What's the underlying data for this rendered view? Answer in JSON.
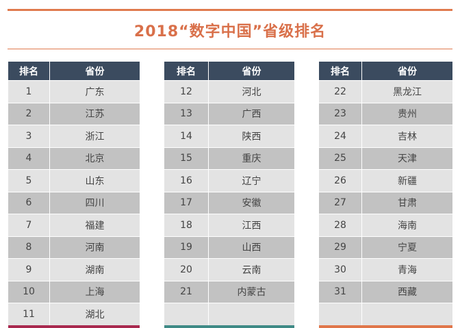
{
  "title": "2018“数字中国”省级排名",
  "colors": {
    "accent": "#e07a4e",
    "header_bg": "#3b4b5f",
    "row_light": "#e3e3e3",
    "row_dark": "#c2c2c2",
    "footer_1": "#a8294f",
    "footer_2": "#3f8a86",
    "footer_3": "#e0764a"
  },
  "tables": [
    {
      "headers": {
        "rank": "排名",
        "province": "省份"
      },
      "rows": [
        {
          "rank": "1",
          "province": "广东"
        },
        {
          "rank": "2",
          "province": "江苏"
        },
        {
          "rank": "3",
          "province": "浙江"
        },
        {
          "rank": "4",
          "province": "北京"
        },
        {
          "rank": "5",
          "province": "山东"
        },
        {
          "rank": "6",
          "province": "四川"
        },
        {
          "rank": "7",
          "province": "福建"
        },
        {
          "rank": "8",
          "province": "河南"
        },
        {
          "rank": "9",
          "province": "湖南"
        },
        {
          "rank": "10",
          "province": "上海"
        },
        {
          "rank": "11",
          "province": "湖北"
        }
      ]
    },
    {
      "headers": {
        "rank": "排名",
        "province": "省份"
      },
      "rows": [
        {
          "rank": "12",
          "province": "河北"
        },
        {
          "rank": "13",
          "province": "广西"
        },
        {
          "rank": "14",
          "province": "陕西"
        },
        {
          "rank": "15",
          "province": "重庆"
        },
        {
          "rank": "16",
          "province": "辽宁"
        },
        {
          "rank": "17",
          "province": "安徽"
        },
        {
          "rank": "18",
          "province": "江西"
        },
        {
          "rank": "19",
          "province": "山西"
        },
        {
          "rank": "20",
          "province": "云南"
        },
        {
          "rank": "21",
          "province": "内蒙古"
        },
        {
          "rank": "",
          "province": ""
        }
      ]
    },
    {
      "headers": {
        "rank": "排名",
        "province": "省份"
      },
      "rows": [
        {
          "rank": "22",
          "province": "黑龙江"
        },
        {
          "rank": "23",
          "province": "贵州"
        },
        {
          "rank": "24",
          "province": "吉林"
        },
        {
          "rank": "25",
          "province": "天津"
        },
        {
          "rank": "26",
          "province": "新疆"
        },
        {
          "rank": "27",
          "province": "甘肃"
        },
        {
          "rank": "28",
          "province": "海南"
        },
        {
          "rank": "29",
          "province": "宁夏"
        },
        {
          "rank": "30",
          "province": "青海"
        },
        {
          "rank": "31",
          "province": "西藏"
        },
        {
          "rank": "",
          "province": ""
        }
      ]
    }
  ]
}
